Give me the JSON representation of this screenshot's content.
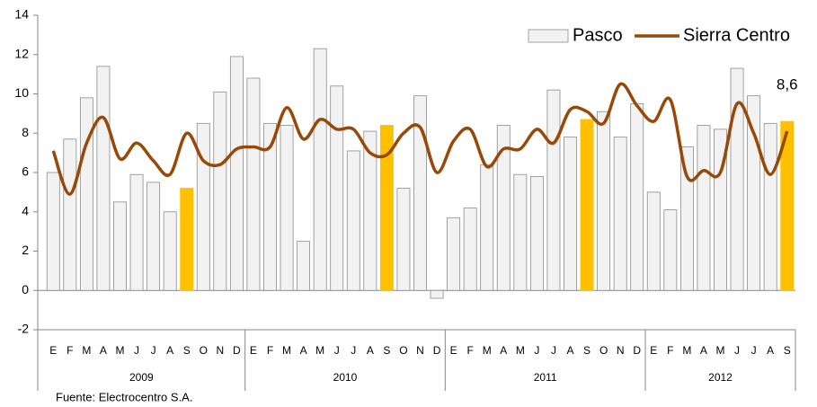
{
  "chart_data": {
    "type": "bar_line",
    "categories": [
      "E",
      "F",
      "M",
      "A",
      "M",
      "J",
      "J",
      "A",
      "S",
      "O",
      "N",
      "D",
      "E",
      "F",
      "M",
      "A",
      "M",
      "J",
      "J",
      "A",
      "S",
      "O",
      "N",
      "D",
      "E",
      "F",
      "M",
      "A",
      "M",
      "J",
      "J",
      "A",
      "S",
      "O",
      "N",
      "D",
      "E",
      "F",
      "M",
      "A",
      "M",
      "J",
      "J",
      "A",
      "S"
    ],
    "years": [
      "2009",
      "2010",
      "2011",
      "2012"
    ],
    "series": [
      {
        "name": "Pasco",
        "type": "bar",
        "color": "#f2f2f2",
        "highlight_color": "#ffc000",
        "values": [
          6.0,
          7.7,
          9.8,
          11.4,
          4.5,
          5.9,
          5.5,
          4.0,
          5.2,
          8.5,
          10.1,
          11.9,
          10.8,
          8.5,
          8.4,
          2.5,
          12.3,
          10.4,
          7.1,
          8.1,
          8.4,
          5.2,
          9.9,
          -0.4,
          3.7,
          4.2,
          6.4,
          8.4,
          5.9,
          5.8,
          10.2,
          7.8,
          8.7,
          9.1,
          7.8,
          9.5,
          5.0,
          4.1,
          7.3,
          8.4,
          8.2,
          11.3,
          9.9,
          8.5,
          8.6
        ],
        "highlighted": [
          "S"
        ]
      },
      {
        "name": "Sierra Centro",
        "type": "line",
        "color": "#984807",
        "values": [
          7.1,
          4.9,
          7.5,
          8.8,
          6.7,
          7.5,
          6.6,
          5.9,
          8.0,
          6.6,
          6.4,
          7.2,
          7.3,
          7.3,
          9.3,
          7.7,
          8.7,
          8.2,
          8.2,
          7.0,
          6.9,
          8.0,
          8.3,
          6.0,
          7.6,
          8.2,
          6.3,
          7.2,
          7.2,
          8.2,
          7.5,
          9.2,
          9.1,
          8.5,
          10.5,
          9.4,
          8.6,
          9.7,
          5.8,
          6.1,
          6.0,
          9.5,
          8.0,
          5.9,
          8.1
        ]
      }
    ],
    "value_labels": {
      "series": 0,
      "index": 44,
      "label": "8,6"
    },
    "ylim": [
      -2,
      14
    ],
    "yticks": [
      -2,
      0,
      2,
      4,
      6,
      8,
      10,
      12,
      14
    ],
    "legend": "top-right",
    "source": "Fuente: Electrocentro S.A."
  }
}
